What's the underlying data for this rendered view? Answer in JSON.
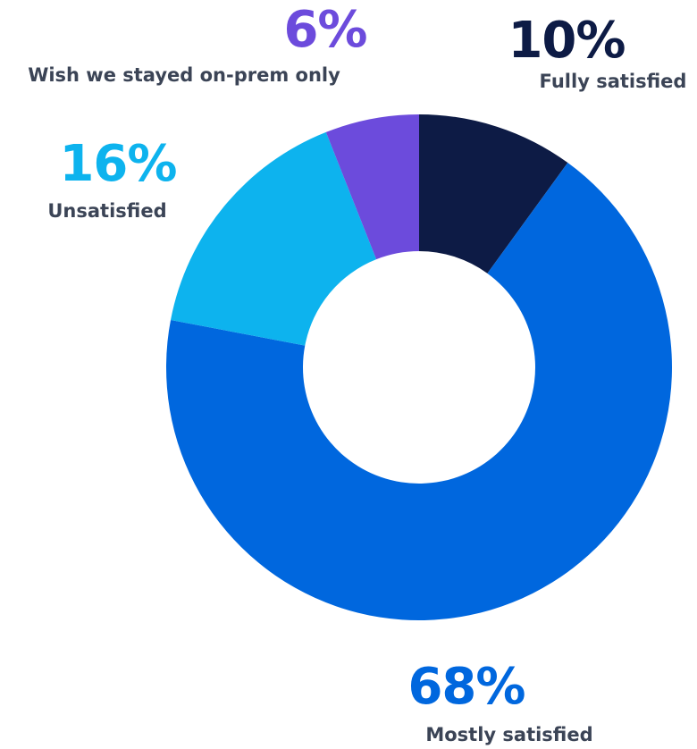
{
  "chart_data": {
    "type": "pie",
    "donut": true,
    "categories": [
      "Fully satisfied",
      "Mostly satisfied",
      "Unsatisfied",
      "Wish we stayed on-prem only"
    ],
    "values": [
      10,
      68,
      16,
      6
    ],
    "value_labels": [
      "10%",
      "68%",
      "16%",
      "6%"
    ],
    "colors": [
      "#0d1b45",
      "#0067de",
      "#0db3ee",
      "#6c4bdc"
    ],
    "label_color": "#3b4456",
    "unit": "%"
  }
}
